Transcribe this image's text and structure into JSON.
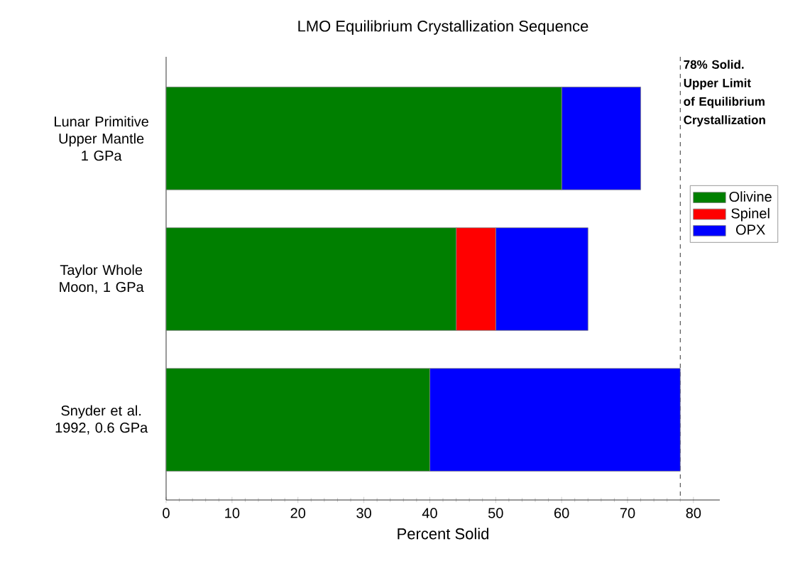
{
  "chart_data": {
    "type": "bar",
    "orientation": "horizontal",
    "stacked": true,
    "title": "LMO Equilibrium Crystallization Sequence",
    "xlabel": "Percent Solid",
    "categories": [
      "Lunar Primitive Upper Mantle 1 GPa",
      "Taylor Whole Moon, 1 GPa",
      "Snyder et al. 1992, 0.6 GPa"
    ],
    "series": [
      {
        "name": "Olivine",
        "color": "#007f00",
        "values": [
          60,
          44,
          40
        ]
      },
      {
        "name": "Spinel",
        "color": "#ff0000",
        "values": [
          0,
          6,
          0
        ]
      },
      {
        "name": "OPX",
        "color": "#0000ff",
        "values": [
          12,
          14,
          38
        ]
      }
    ],
    "xlim": [
      0,
      84
    ],
    "xticks": [
      0,
      10,
      20,
      30,
      40,
      50,
      60,
      70,
      80
    ],
    "legend": "right",
    "ref_lines": [
      {
        "axis": "x",
        "value": 78,
        "label": "**78% Solid. Upper Limit of Equilibrium Crystallization**",
        "line_style": "dashed"
      }
    ]
  }
}
